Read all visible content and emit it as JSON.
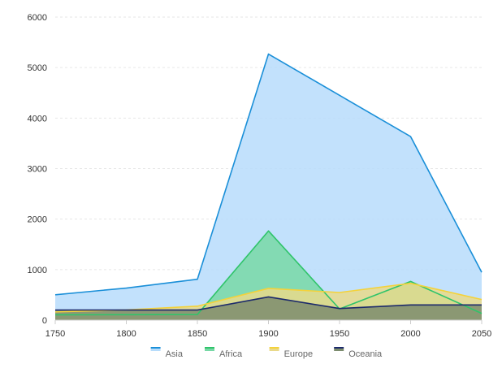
{
  "chart_data": {
    "type": "area",
    "title": "",
    "xlabel": "",
    "ylabel": "",
    "x": [
      1750,
      1800,
      1850,
      1900,
      1950,
      2000,
      2050
    ],
    "ylim": [
      0,
      6000
    ],
    "yticks": [
      0,
      1000,
      2000,
      3000,
      4000,
      5000,
      6000
    ],
    "grid": "horizontal dashed",
    "legend_position": "bottom",
    "series": [
      {
        "name": "Asia",
        "values": [
          502,
          635,
          809,
          5268,
          4450,
          3634,
          947
        ],
        "stroke": "#1a8fd8",
        "fill": "#b7dcfb"
      },
      {
        "name": "Africa",
        "values": [
          106,
          107,
          111,
          1766,
          221,
          767,
          133
        ],
        "stroke": "#2fc46a",
        "fill": "#78d8a6"
      },
      {
        "name": "Europe",
        "values": [
          163,
          203,
          276,
          628,
          547,
          729,
          408
        ],
        "stroke": "#f4d23a",
        "fill": "#e9d98a"
      },
      {
        "name": "Oceania",
        "values": [
          200,
          200,
          200,
          460,
          230,
          300,
          300
        ],
        "stroke": "#1c2a6b",
        "fill": "#7c8c6e"
      }
    ]
  }
}
